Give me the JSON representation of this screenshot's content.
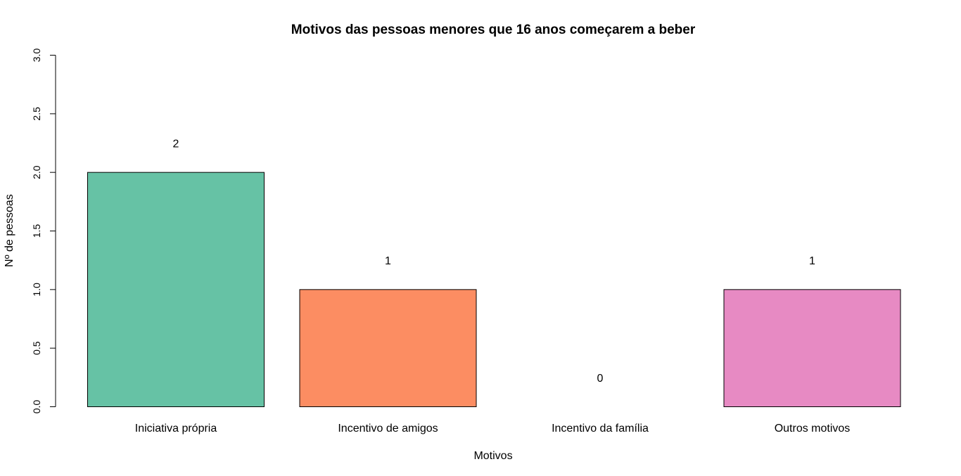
{
  "chart_data": {
    "type": "bar",
    "title": "Motivos das pessoas menores que 16 anos começarem a beber",
    "xlabel": "Motivos",
    "ylabel": "Nº de pessoas",
    "categories": [
      "Iniciativa própria",
      "Incentivo de amigos",
      "Incentivo da família",
      "Outros motivos"
    ],
    "values": [
      2,
      1,
      0,
      1
    ],
    "data_labels": [
      "2",
      "1",
      "0",
      "1"
    ],
    "colors": [
      "#66C2A5",
      "#FC8D62",
      "#8DA0CB",
      "#E78AC3"
    ],
    "ylim": [
      0,
      3
    ],
    "yticks": [
      0,
      0.5,
      1,
      1.5,
      2,
      2.5,
      3
    ],
    "ytick_labels": [
      "0.0",
      "0.5",
      "1.0",
      "1.5",
      "2.0",
      "2.5",
      "3.0"
    ],
    "grid": false,
    "legend": "none"
  }
}
